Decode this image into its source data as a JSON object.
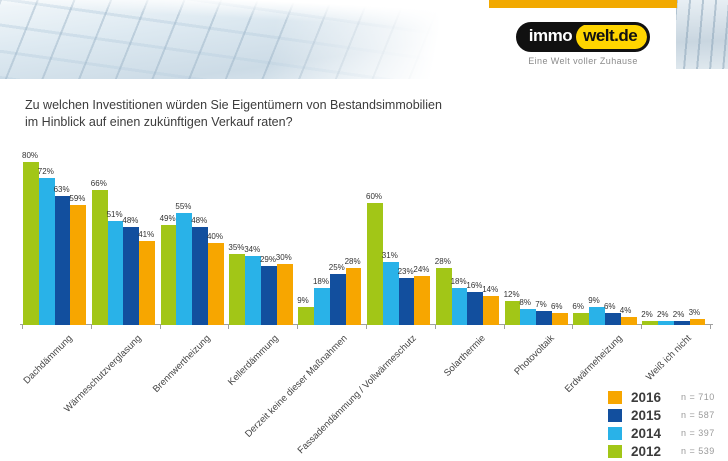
{
  "header": {
    "logo": {
      "icon": "immowelt-logo",
      "brand_left": "immo",
      "brand_right": "welt.de",
      "tagline": "Eine Welt voller Zuhause"
    },
    "accent_color": "#f2a900"
  },
  "title": {
    "line1": "Zu welchen Investitionen würden Sie Eigentümern von Bestandsimmobilien",
    "line2": "im Hinblick auf einen zukünftigen Verkauf raten?"
  },
  "chart_data": {
    "type": "bar",
    "title": "Zu welchen Investitionen würden Sie Eigentümern von Bestandsimmobilien im Hinblick auf einen zukünftigen Verkauf raten?",
    "categories": [
      "Dachdämmung",
      "Wärmeschutzverglasung",
      "Brennwertheizung",
      "Kellerdämmung",
      "Derzeit keine dieser Maßnahmen",
      "Fassadendämmung / Vollwärmeschutz",
      "Solarthermie",
      "Photovoltaik",
      "Erdwärmeheizung",
      "Weiß ich nicht"
    ],
    "series": [
      {
        "name": "2012",
        "n_label": "n = 539",
        "color": "#a2c617",
        "values": [
          80,
          66,
          49,
          35,
          9,
          60,
          28,
          12,
          6,
          2
        ]
      },
      {
        "name": "2014",
        "n_label": "n = 397",
        "color": "#29b2e8",
        "values": [
          72,
          51,
          55,
          34,
          18,
          31,
          18,
          8,
          9,
          2
        ]
      },
      {
        "name": "2015",
        "n_label": "n = 587",
        "color": "#124f9e",
        "values": [
          63,
          48,
          48,
          29,
          25,
          23,
          16,
          7,
          6,
          2
        ]
      },
      {
        "name": "2016",
        "n_label": "n = 710",
        "color": "#f7a600",
        "values": [
          59,
          41,
          40,
          30,
          28,
          24,
          14,
          6,
          4,
          3
        ]
      }
    ],
    "legend_order": [
      "2016",
      "2015",
      "2014",
      "2012"
    ],
    "value_suffix": "%",
    "xlabel": "",
    "ylabel": "",
    "ylim": [
      0,
      85
    ],
    "grid": false,
    "legend_position": "bottom-right"
  }
}
